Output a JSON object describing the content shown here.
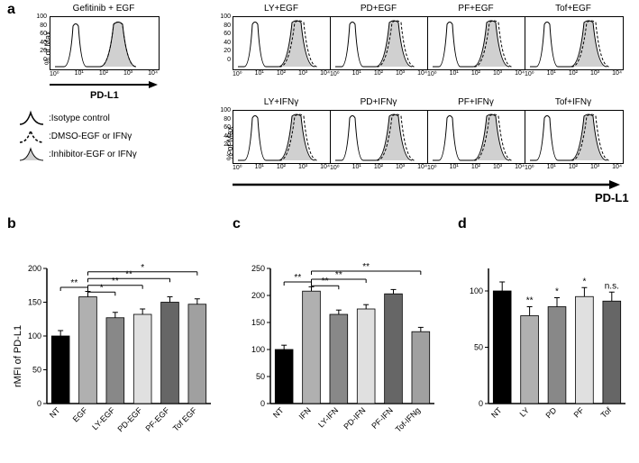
{
  "panel_labels": {
    "a": "a",
    "b": "b",
    "c": "c",
    "d": "d"
  },
  "hist_top": {
    "gefitinib": "Gefitinib + EGF",
    "ly_egf": "LY+EGF",
    "pd_egf": "PD+EGF",
    "pf_egf": "PF+EGF",
    "tof_egf": "Tof+EGF",
    "ly_ifn": "LY+IFNγ",
    "pd_ifn": "PD+IFNγ",
    "pf_ifn": "PF+IFNγ",
    "tof_ifn": "Tof+IFNγ"
  },
  "axis": {
    "y_pct": "% of Max",
    "pdl1": "PD-L1",
    "rmfi": "rMFI of PD-L1",
    "y_ticks": [
      "0",
      "20",
      "40",
      "60",
      "80",
      "100"
    ],
    "x_ticks": [
      "10⁰",
      "10¹",
      "10²",
      "10³",
      "10⁴"
    ]
  },
  "legend": {
    "iso": ":Isotype control",
    "dmso": ":DMSO-EGF or IFNγ",
    "inhib": ":Inhibitor-EGF or IFNγ"
  },
  "chartB": {
    "categories": [
      "NT",
      "EGF",
      "LY-EGF",
      "PD-EGF",
      "PF-EGF",
      "Tof EGF"
    ],
    "values": [
      100,
      158,
      127,
      132,
      150,
      147
    ],
    "colors": [
      "#000000",
      "#b0b0b0",
      "#888888",
      "#e0e0e0",
      "#666666",
      "#a0a0a0"
    ],
    "ylim": [
      0,
      200
    ],
    "ytick": 50,
    "sig": [
      {
        "from": 0,
        "to": 1,
        "label": "**",
        "y": 172
      },
      {
        "from": 1,
        "to": 2,
        "label": "*",
        "y": 165
      },
      {
        "from": 1,
        "to": 3,
        "label": "**",
        "y": 175
      },
      {
        "from": 1,
        "to": 4,
        "label": "**",
        "y": 185
      },
      {
        "from": 1,
        "to": 5,
        "label": "*",
        "y": 195
      }
    ]
  },
  "chartC": {
    "categories": [
      "NT",
      "IFN",
      "LY-IFN",
      "PD-IFN",
      "PF-IFN",
      "Tof-IFNg"
    ],
    "values": [
      100,
      208,
      165,
      175,
      203,
      133
    ],
    "colors": [
      "#000000",
      "#b0b0b0",
      "#888888",
      "#e0e0e0",
      "#666666",
      "#a0a0a0"
    ],
    "ylim": [
      0,
      250
    ],
    "ytick": 50,
    "sig": [
      {
        "from": 0,
        "to": 1,
        "label": "**",
        "y": 225
      },
      {
        "from": 1,
        "to": 2,
        "label": "**",
        "y": 218
      },
      {
        "from": 1,
        "to": 3,
        "label": "**",
        "y": 230
      },
      {
        "from": 1,
        "to": 5,
        "label": "**",
        "y": 245
      }
    ]
  },
  "chartD": {
    "categories": [
      "NT",
      "LY",
      "PD",
      "PF",
      "Tof"
    ],
    "values": [
      100,
      78,
      86,
      95,
      91
    ],
    "colors": [
      "#000000",
      "#b0b0b0",
      "#888888",
      "#e0e0e0",
      "#666666"
    ],
    "ylim": [
      0,
      120
    ],
    "ytick": 50,
    "sig_single": [
      "",
      "**",
      "*",
      "*",
      "n.s."
    ]
  },
  "style": {
    "err_bar": 8,
    "bar_width": 0.65,
    "hist_bg": "#ffffff",
    "fill_gray": "#d0d0d0",
    "font_size_tick": 8,
    "font_size_label": 10
  }
}
